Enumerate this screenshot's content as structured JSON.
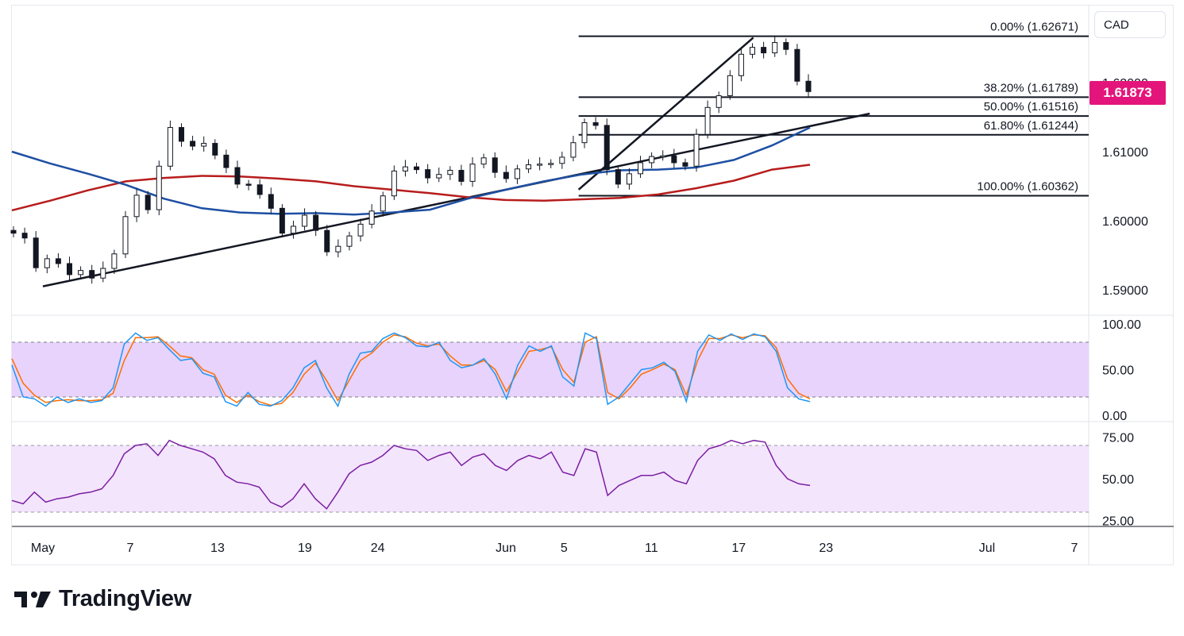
{
  "scale_label": "CAD",
  "last_price_label": "1.61873",
  "brand": {
    "name": "TradingView",
    "logo_icon": "tradingview-logo-icon"
  },
  "colors": {
    "ma_fast": "#1e4fa3",
    "ma_slow": "#b71c1c",
    "last_price": "#e4157a",
    "stoch_k": "#2196f3",
    "stoch_d": "#ff6d00",
    "stoch_band": "#e7d3fb",
    "rsi_line": "#7b1fa2",
    "rsi_band": "#f3e5fc",
    "candle": "#131722"
  },
  "chart_data": {
    "type": "candlestick",
    "main_pane": {
      "price_axis_ticks": [
        "1.62000",
        "1.61000",
        "1.60000",
        "1.59000"
      ],
      "fibonacci": [
        {
          "label": "0.00% (1.62671)",
          "value": 1.62671
        },
        {
          "label": "38.20% (1.61789)",
          "value": 1.61789
        },
        {
          "label": "50.00% (1.61516)",
          "value": 1.61516
        },
        {
          "label": "61.80% (1.61244)",
          "value": 1.61244
        },
        {
          "label": "100.00% (1.60362)",
          "value": 1.60362
        }
      ],
      "fib_range": {
        "start": "Jun 6",
        "end": "Jun 18"
      },
      "trendlines": [
        {
          "from": {
            "date": "May 1",
            "price": 1.5905
          },
          "to": {
            "date": "Jun 26",
            "price": 1.6155
          }
        },
        {
          "from": {
            "date": "Jun 6",
            "price": 1.6045
          },
          "to": {
            "date": "Jun 18",
            "price": 1.6265
          }
        }
      ],
      "closes": [
        1.5982,
        1.5975,
        1.5932,
        1.5945,
        1.5938,
        1.5922,
        1.5928,
        1.5917,
        1.5931,
        1.5952,
        1.6006,
        1.6037,
        1.6016,
        1.6079,
        1.6135,
        1.6115,
        1.6108,
        1.6112,
        1.6095,
        1.6077,
        1.6053,
        1.6052,
        1.6038,
        1.6018,
        1.5982,
        1.5992,
        1.6008,
        1.5986,
        1.5955,
        1.5963,
        1.5978,
        1.5995,
        1.6014,
        1.6036,
        1.6072,
        1.6078,
        1.6074,
        1.6062,
        1.6067,
        1.6073,
        1.6057,
        1.6082,
        1.6091,
        1.607,
        1.6061,
        1.6075,
        1.6081,
        1.6082,
        1.6083,
        1.6092,
        1.6113,
        1.6142,
        1.6138,
        1.6074,
        1.6053,
        1.6068,
        1.6084,
        1.6093,
        1.6094,
        1.6084,
        1.6079,
        1.6125,
        1.6164,
        1.6181,
        1.621,
        1.6241,
        1.6251,
        1.6243,
        1.6258,
        1.6248,
        1.6202,
        1.6187
      ],
      "ma_fast": [
        1.61,
        1.6083,
        1.6068,
        1.6052,
        1.6032,
        1.6018,
        1.6012,
        1.601,
        1.6011,
        1.6009,
        1.6012,
        1.6016,
        1.6032,
        1.6045,
        1.6057,
        1.6067,
        1.6073,
        1.6074,
        1.6077,
        1.6088,
        1.6109,
        1.6135
      ],
      "ma_slow": [
        1.6015,
        1.6029,
        1.6044,
        1.6057,
        1.6062,
        1.6065,
        1.6064,
        1.6061,
        1.6057,
        1.605,
        1.6045,
        1.604,
        1.6034,
        1.603,
        1.6029,
        1.6031,
        1.6033,
        1.6038,
        1.6047,
        1.6058,
        1.6074,
        1.6081
      ]
    },
    "stochastic": {
      "axis_ticks": [
        "100.00",
        "50.00",
        "0.00"
      ],
      "band": [
        20,
        80
      ],
      "k": [
        55,
        20,
        18,
        10,
        20,
        14,
        18,
        14,
        16,
        30,
        78,
        90,
        82,
        85,
        72,
        60,
        62,
        46,
        42,
        15,
        10,
        25,
        12,
        10,
        16,
        30,
        52,
        60,
        30,
        10,
        45,
        68,
        70,
        84,
        90,
        85,
        76,
        75,
        80,
        60,
        52,
        55,
        62,
        45,
        18,
        55,
        76,
        70,
        76,
        42,
        32,
        90,
        84,
        12,
        20,
        35,
        50,
        52,
        58,
        48,
        15,
        70,
        88,
        82,
        89,
        83,
        89,
        86,
        70,
        30,
        18,
        15
      ],
      "d": [
        62,
        35,
        22,
        14,
        16,
        17,
        16,
        16,
        17,
        24,
        60,
        85,
        85,
        86,
        76,
        65,
        63,
        50,
        45,
        22,
        14,
        22,
        15,
        11,
        13,
        25,
        45,
        57,
        38,
        16,
        38,
        60,
        68,
        80,
        88,
        86,
        79,
        76,
        78,
        65,
        55,
        55,
        60,
        50,
        26,
        48,
        70,
        72,
        75,
        50,
        36,
        80,
        86,
        25,
        18,
        30,
        45,
        50,
        56,
        50,
        22,
        60,
        84,
        84,
        88,
        85,
        88,
        87,
        74,
        40,
        24,
        18
      ]
    },
    "rsi": {
      "axis_ticks": [
        "75.00",
        "50.00",
        "25.00"
      ],
      "band": [
        30,
        70
      ],
      "values": [
        37,
        35,
        42,
        36,
        38,
        39,
        41,
        42,
        44,
        52,
        65,
        70,
        71,
        64,
        73,
        70,
        68,
        66,
        62,
        52,
        48,
        47,
        45,
        36,
        33,
        38,
        47,
        38,
        32,
        42,
        53,
        58,
        60,
        64,
        70,
        68,
        67,
        61,
        64,
        66,
        58,
        63,
        65,
        58,
        55,
        61,
        64,
        62,
        66,
        54,
        52,
        68,
        66,
        40,
        46,
        49,
        52,
        52,
        54,
        49,
        47,
        61,
        68,
        70,
        73,
        71,
        73,
        72,
        58,
        50,
        47,
        46
      ]
    },
    "x_axis_ticks": [
      {
        "label": "May",
        "date": "May 1"
      },
      {
        "label": "7",
        "date": "May 7"
      },
      {
        "label": "13",
        "date": "May 13"
      },
      {
        "label": "19",
        "date": "May 19"
      },
      {
        "label": "24",
        "date": "May 24"
      },
      {
        "label": "Jun",
        "date": "Jun 1"
      },
      {
        "label": "5",
        "date": "Jun 5"
      },
      {
        "label": "11",
        "date": "Jun 11"
      },
      {
        "label": "17",
        "date": "Jun 17"
      },
      {
        "label": "23",
        "date": "Jun 23"
      },
      {
        "label": "Jul",
        "date": "Jul 1"
      },
      {
        "label": "7",
        "date": "Jul 7"
      }
    ]
  }
}
